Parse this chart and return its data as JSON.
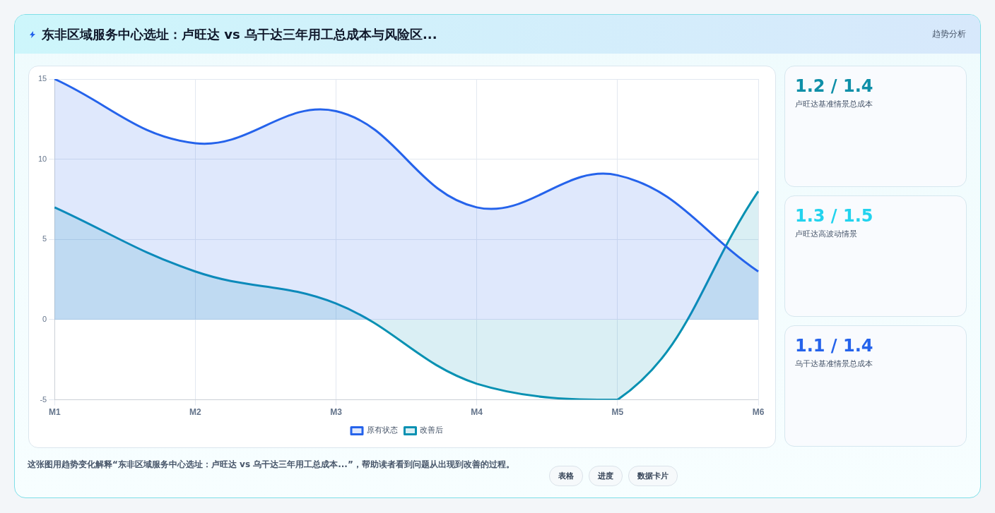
{
  "chart_data": [
    {
      "type": "area",
      "title": "东非区域服务中心选址：卢旺达 vs 乌干达三年用工总成本与风险区...",
      "categories": [
        "M1",
        "M2",
        "M3",
        "M4",
        "M5",
        "M6"
      ],
      "series": [
        {
          "name": "原有状态",
          "color": "#2563eb",
          "values": [
            15,
            11,
            13,
            7,
            9,
            3
          ]
        },
        {
          "name": "改善后",
          "color": "#0891b2",
          "values": [
            7,
            3,
            1,
            -4,
            -5,
            8
          ]
        }
      ],
      "ylim": [
        -5,
        15
      ],
      "yticks": [
        -5,
        0,
        5,
        10,
        15
      ],
      "grid": true,
      "legend": "bottom",
      "marker": "none",
      "annotations": [
        "趋势分析",
        "这张图用趋势变化解释“东非区域服务中心选址：卢旺达 vs 乌干达三年用工总成本...”，帮助读者看到问题从出现到改善的过程。"
      ]
    },
    {
      "type": "other",
      "annotations": [
        "1.2 / 1.4",
        "卢旺达基准情景总成本",
        "1.3 / 1.5",
        "卢旺达高波动情景",
        "1.1 / 1.4",
        "乌干达基准情景总成本",
        "表格",
        "进度",
        "数据卡片"
      ],
      "colors": [
        "#0e8fa8",
        "#22d3ee",
        "#2563eb"
      ]
    }
  ]
}
